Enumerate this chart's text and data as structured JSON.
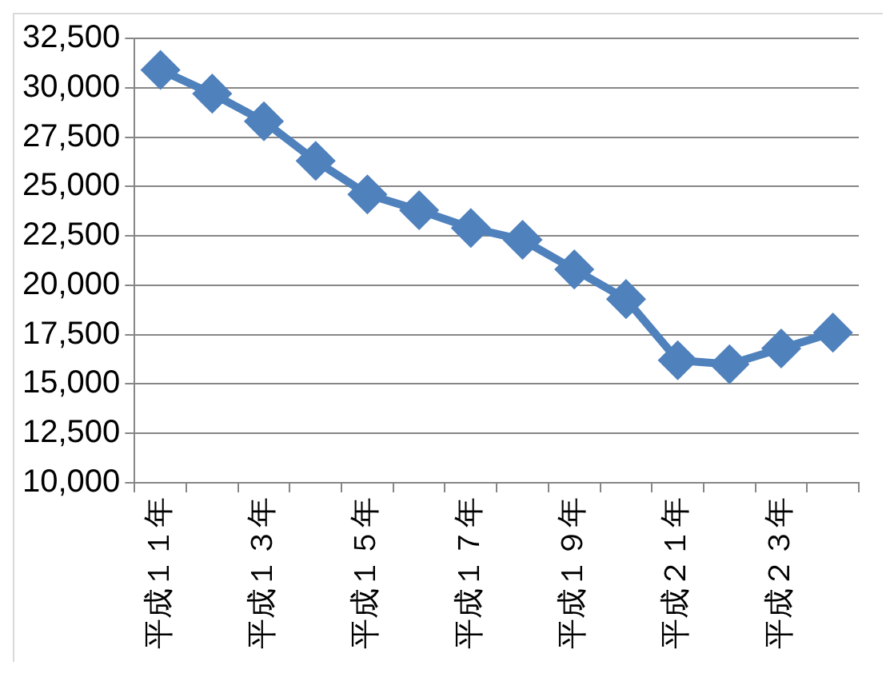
{
  "chart_data": {
    "type": "line",
    "categories": [
      "平成１１年",
      null,
      "平成１３年",
      null,
      "平成１５年",
      null,
      "平成１７年",
      null,
      "平成１９年",
      null,
      "平成２１年",
      null,
      "平成２３年",
      null
    ],
    "series": [
      {
        "color": "#4f81bd",
        "values": [
          30900,
          29700,
          28300,
          26300,
          24600,
          23800,
          22900,
          22300,
          20800,
          19300,
          16200,
          16000,
          16800,
          17600
        ]
      }
    ],
    "ylim": [
      10000,
      32500
    ],
    "yticks": [
      {
        "value": 10000,
        "label": "10,000"
      },
      {
        "value": 12500,
        "label": "12,500"
      },
      {
        "value": 15000,
        "label": "15,000"
      },
      {
        "value": 17500,
        "label": "17,500"
      },
      {
        "value": 20000,
        "label": "20,000"
      },
      {
        "value": 22500,
        "label": "22,500"
      },
      {
        "value": 25000,
        "label": "25,000"
      },
      {
        "value": 27500,
        "label": "27,500"
      },
      {
        "value": 30000,
        "label": "30,000"
      },
      {
        "value": 32500,
        "label": "32,500"
      }
    ],
    "grid": "y",
    "legend": false,
    "marker": "diamond",
    "line_style": "solid"
  }
}
